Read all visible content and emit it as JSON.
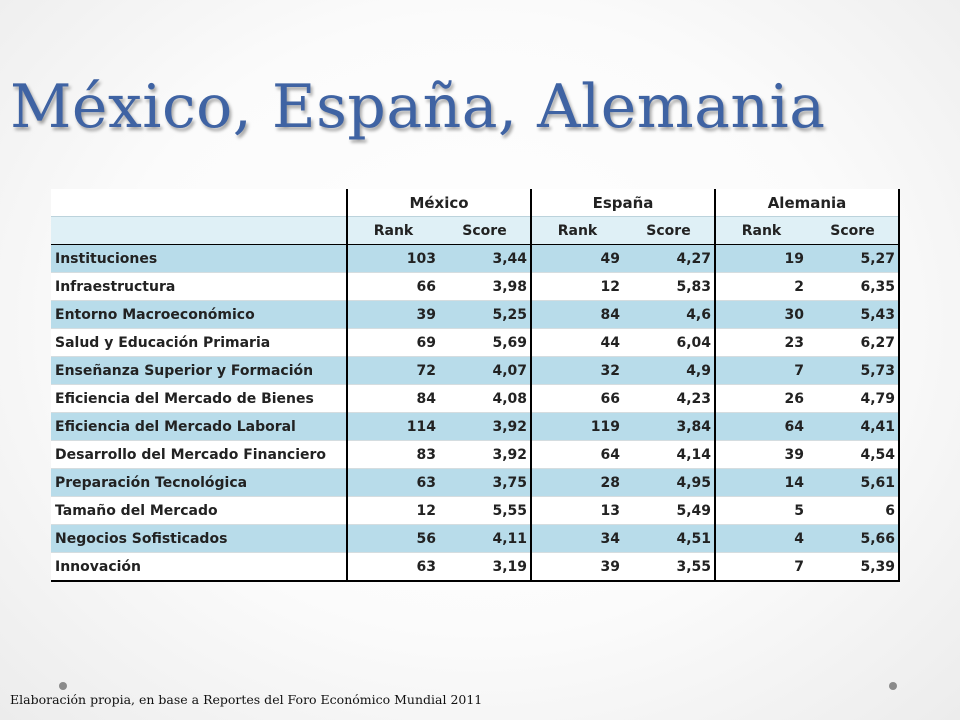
{
  "slide": {
    "title": "México, España, Alemania",
    "source": "Elaboración propia, en base a Reportes del Foro Económico Mundial 2011"
  },
  "table": {
    "countries": [
      "México",
      "España",
      "Alemania"
    ],
    "subheaders": [
      "Rank",
      "Score",
      "Rank",
      "Score",
      "Rank",
      "Score"
    ],
    "shade_color": "#b8dcea",
    "header_color": "#dff0f6",
    "rows": [
      {
        "label": "Instituciones",
        "values": [
          "103",
          "3,44",
          "49",
          "4,27",
          "19",
          "5,27"
        ]
      },
      {
        "label": "Infraestructura",
        "values": [
          "66",
          "3,98",
          "12",
          "5,83",
          "2",
          "6,35"
        ]
      },
      {
        "label": "Entorno Macroeconómico",
        "values": [
          "39",
          "5,25",
          "84",
          "4,6",
          "30",
          "5,43"
        ]
      },
      {
        "label": "Salud y Educación Primaria",
        "values": [
          "69",
          "5,69",
          "44",
          "6,04",
          "23",
          "6,27"
        ]
      },
      {
        "label": "Enseñanza Superior y Formación",
        "values": [
          "72",
          "4,07",
          "32",
          "4,9",
          "7",
          "5,73"
        ]
      },
      {
        "label": "Eficiencia del Mercado de Bienes",
        "values": [
          "84",
          "4,08",
          "66",
          "4,23",
          "26",
          "4,79"
        ]
      },
      {
        "label": "Eficiencia del Mercado Laboral",
        "values": [
          "114",
          "3,92",
          "119",
          "3,84",
          "64",
          "4,41"
        ]
      },
      {
        "label": "Desarrollo del Mercado Financiero",
        "values": [
          "83",
          "3,92",
          "64",
          "4,14",
          "39",
          "4,54"
        ]
      },
      {
        "label": "Preparación Tecnológica",
        "values": [
          "63",
          "3,75",
          "28",
          "4,95",
          "14",
          "5,61"
        ]
      },
      {
        "label": "Tamaño del Mercado",
        "values": [
          "12",
          "5,55",
          "13",
          "5,49",
          "5",
          "6"
        ]
      },
      {
        "label": "Negocios Sofisticados",
        "values": [
          "56",
          "4,11",
          "34",
          "4,51",
          "4",
          "5,66"
        ]
      },
      {
        "label": "Innovación",
        "values": [
          "63",
          "3,19",
          "39",
          "3,55",
          "7",
          "5,39"
        ]
      }
    ]
  }
}
